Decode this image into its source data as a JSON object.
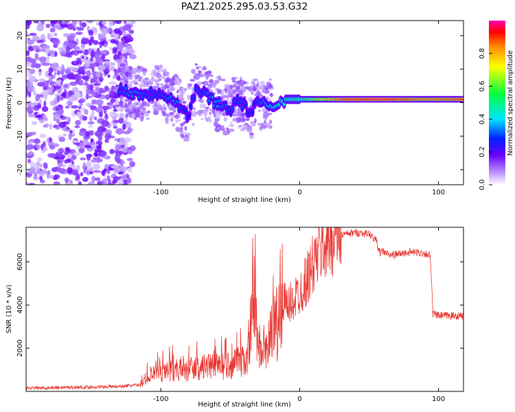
{
  "title": "PAZ1.2025.295.03.53.G32",
  "chart_data": [
    {
      "type": "heatmap",
      "xlabel": "Height of straight line (km)",
      "ylabel": "Frequency (Hz)",
      "xlim": [
        -197,
        118
      ],
      "ylim": [
        -24.5,
        24.5
      ],
      "x_ticks": [
        "-100",
        "0",
        "100"
      ],
      "x_tick_values": [
        -100,
        0,
        100
      ],
      "y_ticks": [
        "20",
        "10",
        "0",
        "-10",
        "-20"
      ],
      "y_tick_values": [
        20,
        10,
        0,
        -10,
        -20
      ],
      "colorbar": {
        "label": "Normalized spectral amplitude",
        "ticks": [
          "0.0",
          "0.2",
          "0.4",
          "0.6",
          "0.8"
        ],
        "tick_values": [
          0.0,
          0.2,
          0.4,
          0.6,
          0.8
        ],
        "range": [
          0,
          1
        ]
      },
      "ridge": {
        "x": [
          -130,
          -120,
          -110,
          -100,
          -90,
          -85,
          -80,
          -75,
          -70,
          -60,
          -50,
          -45,
          -40,
          -35,
          -30,
          -20,
          -10,
          0,
          10,
          30,
          60,
          90,
          118
        ],
        "freq": [
          4,
          3,
          2.5,
          3,
          1,
          -2,
          -4,
          4,
          3,
          0,
          -2,
          1,
          -1,
          -3,
          0,
          -1,
          1,
          1,
          1,
          1,
          1,
          1,
          1
        ],
        "amplitude": [
          0.3,
          0.35,
          0.3,
          0.3,
          0.35,
          0.3,
          0.25,
          0.3,
          0.3,
          0.35,
          0.3,
          0.3,
          0.3,
          0.25,
          0.3,
          0.4,
          0.45,
          0.5,
          0.65,
          0.9,
          0.95,
          0.85,
          0.9
        ]
      }
    },
    {
      "type": "line",
      "xlabel": "Height of straight line (km)",
      "ylabel": "SNR (10 * v/v)",
      "xlim": [
        -197,
        118
      ],
      "ylim": [
        0,
        7600
      ],
      "x_ticks": [
        "-100",
        "0",
        "100"
      ],
      "x_tick_values": [
        -100,
        0,
        100
      ],
      "y_ticks": [
        "2000",
        "4000",
        "6000"
      ],
      "y_tick_values": [
        2000,
        4000,
        6000
      ],
      "color": "#e8322d",
      "series": [
        {
          "name": "SNR",
          "x": [
            -197,
            -170,
            -150,
            -130,
            -115,
            -110,
            -100,
            -90,
            -80,
            -70,
            -60,
            -50,
            -45,
            -40,
            -38,
            -35,
            -32,
            -30,
            -25,
            -20,
            -15,
            -10,
            -5,
            0,
            5,
            10,
            15,
            20,
            25,
            30,
            40,
            50,
            55,
            58,
            60,
            65,
            70,
            80,
            90,
            94,
            96,
            100,
            110,
            118
          ],
          "y": [
            150,
            180,
            200,
            230,
            300,
            700,
            900,
            1000,
            1000,
            1100,
            1150,
            1200,
            1350,
            1400,
            1600,
            3200,
            3500,
            2200,
            1800,
            2600,
            3200,
            3800,
            4200,
            4600,
            5200,
            5900,
            6500,
            6900,
            7100,
            7250,
            7350,
            7300,
            7000,
            6400,
            6500,
            6300,
            6350,
            6450,
            6400,
            6300,
            3600,
            3500,
            3500,
            3500
          ]
        }
      ]
    }
  ]
}
